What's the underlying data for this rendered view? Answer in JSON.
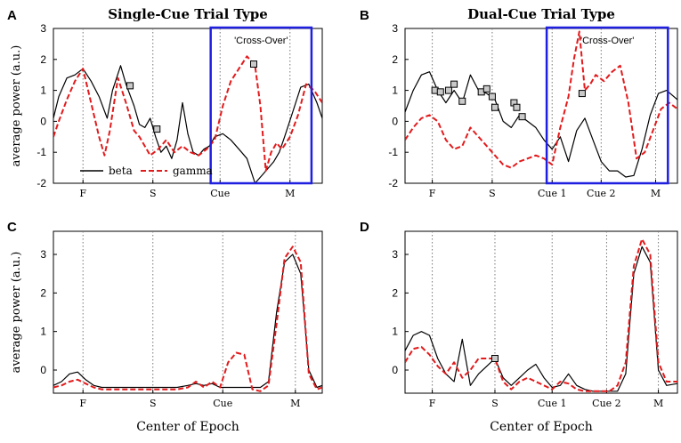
{
  "colors": {
    "beta": "#000000",
    "gamma": "#e31a1c",
    "crossover_box": "#1f1fe0",
    "marker_fill": "#c9c9c9"
  },
  "chart_data": [
    {
      "panel": "A",
      "type": "line",
      "title": "Single-Cue Trial Type",
      "ylabel": "average power (a.u.)",
      "xlabel": "",
      "xlim": [
        0,
        10
      ],
      "ylim": [
        -2,
        3
      ],
      "yticks": [
        -2,
        -1,
        0,
        1,
        2,
        3
      ],
      "event_markers": [
        {
          "label": "F",
          "x": 1.1
        },
        {
          "label": "S",
          "x": 3.7
        },
        {
          "label": "Cue",
          "x": 6.2
        },
        {
          "label": "M",
          "x": 8.8
        }
      ],
      "crossover": {
        "label": "'Cross-Over'",
        "x_start": 5.85,
        "x_end": 9.6
      },
      "legend": {
        "entries": [
          "beta",
          "gamma"
        ],
        "placement": "bottom-left"
      },
      "series": [
        {
          "name": "beta",
          "style": "solid",
          "x": [
            0,
            0.2,
            0.5,
            0.8,
            1.1,
            1.4,
            1.7,
            2.0,
            2.2,
            2.5,
            2.7,
            3.0,
            3.2,
            3.4,
            3.6,
            3.8,
            4.0,
            4.2,
            4.4,
            4.6,
            4.8,
            5.0,
            5.2,
            5.4,
            5.6,
            5.8,
            6.0,
            6.3,
            6.6,
            6.9,
            7.2,
            7.5,
            7.8,
            8.0,
            8.2,
            8.4,
            8.6,
            8.9,
            9.2,
            9.5,
            9.8,
            10.0
          ],
          "y": [
            0.1,
            0.8,
            1.4,
            1.5,
            1.7,
            1.3,
            0.8,
            0.1,
            1.0,
            1.8,
            1.2,
            0.5,
            -0.1,
            -0.2,
            0.1,
            -0.5,
            -1.0,
            -0.8,
            -1.2,
            -0.6,
            0.6,
            -0.4,
            -1.0,
            -1.1,
            -0.9,
            -0.8,
            -0.5,
            -0.4,
            -0.6,
            -0.9,
            -1.2,
            -2.0,
            -1.7,
            -1.5,
            -1.3,
            -1.0,
            -0.5,
            0.3,
            1.1,
            1.2,
            0.6,
            0.1
          ]
        },
        {
          "name": "gamma",
          "style": "dashed",
          "x": [
            0,
            0.2,
            0.5,
            0.8,
            1.1,
            1.4,
            1.7,
            1.9,
            2.1,
            2.4,
            2.7,
            3.0,
            3.2,
            3.4,
            3.6,
            3.9,
            4.2,
            4.5,
            4.8,
            5.1,
            5.4,
            5.7,
            6.0,
            6.3,
            6.6,
            6.9,
            7.2,
            7.5,
            7.7,
            7.9,
            8.1,
            8.3,
            8.5,
            8.8,
            9.1,
            9.4,
            9.7,
            10.0
          ],
          "y": [
            -0.5,
            0.0,
            0.7,
            1.3,
            1.7,
            0.6,
            -0.5,
            -1.1,
            -0.3,
            1.4,
            0.6,
            -0.3,
            -0.5,
            -0.8,
            -1.1,
            -0.9,
            -0.6,
            -1.0,
            -0.8,
            -1.0,
            -1.1,
            -0.9,
            -0.6,
            0.5,
            1.3,
            1.7,
            2.1,
            1.8,
            0.5,
            -1.6,
            -1.0,
            -0.7,
            -0.9,
            -0.5,
            0.2,
            1.2,
            1.0,
            0.6
          ]
        }
      ],
      "markers": [
        {
          "series": "beta",
          "x": 2.85,
          "y": 1.15
        },
        {
          "series": "beta",
          "x": 3.85,
          "y": -0.25
        },
        {
          "series": "gamma",
          "x": 7.45,
          "y": 1.85
        }
      ]
    },
    {
      "panel": "B",
      "type": "line",
      "title": "Dual-Cue Trial Type",
      "ylabel": "",
      "xlabel": "",
      "xlim": [
        0,
        10
      ],
      "ylim": [
        -2,
        3
      ],
      "yticks": [
        -2,
        -1,
        0,
        1,
        2,
        3
      ],
      "event_markers": [
        {
          "label": "F",
          "x": 1.0
        },
        {
          "label": "S",
          "x": 3.2
        },
        {
          "label": "Cue 1",
          "x": 5.4
        },
        {
          "label": "Cue 2",
          "x": 7.2
        },
        {
          "label": "M",
          "x": 9.2
        }
      ],
      "crossover": {
        "label": "'Cross-Over'",
        "x_start": 5.2,
        "x_end": 9.65
      },
      "series": [
        {
          "name": "beta",
          "style": "solid",
          "x": [
            0,
            0.3,
            0.6,
            0.9,
            1.2,
            1.5,
            1.8,
            2.1,
            2.4,
            2.7,
            3.0,
            3.3,
            3.6,
            3.9,
            4.2,
            4.5,
            4.8,
            5.1,
            5.4,
            5.7,
            6.0,
            6.3,
            6.6,
            6.9,
            7.2,
            7.5,
            7.8,
            8.1,
            8.4,
            8.7,
            9.0,
            9.3,
            9.6,
            10.0
          ],
          "y": [
            0.3,
            1.0,
            1.5,
            1.6,
            1.0,
            0.6,
            1.0,
            0.6,
            1.5,
            1.0,
            0.9,
            0.7,
            0.0,
            -0.2,
            0.2,
            0.0,
            -0.2,
            -0.6,
            -0.9,
            -0.5,
            -1.3,
            -0.3,
            0.1,
            -0.6,
            -1.3,
            -1.6,
            -1.6,
            -1.8,
            -1.75,
            -0.9,
            0.2,
            0.9,
            1.0,
            0.7
          ]
        },
        {
          "name": "gamma",
          "style": "dashed",
          "x": [
            0,
            0.3,
            0.6,
            0.9,
            1.2,
            1.5,
            1.8,
            2.1,
            2.4,
            2.7,
            3.0,
            3.3,
            3.6,
            3.9,
            4.2,
            4.5,
            4.8,
            5.1,
            5.4,
            5.7,
            6.0,
            6.2,
            6.4,
            6.6,
            6.8,
            7.0,
            7.3,
            7.6,
            7.9,
            8.2,
            8.5,
            8.8,
            9.1,
            9.4,
            9.7,
            10.0
          ],
          "y": [
            -0.6,
            -0.2,
            0.1,
            0.2,
            0.0,
            -0.6,
            -0.9,
            -0.8,
            -0.2,
            -0.5,
            -0.8,
            -1.1,
            -1.4,
            -1.5,
            -1.3,
            -1.2,
            -1.1,
            -1.2,
            -1.4,
            -0.2,
            0.8,
            2.0,
            2.9,
            1.0,
            1.2,
            1.5,
            1.3,
            1.6,
            1.8,
            0.6,
            -1.2,
            -1.0,
            -0.3,
            0.4,
            0.6,
            0.4
          ]
        }
      ],
      "markers": [
        {
          "series": "beta",
          "x": 1.1,
          "y": 1.0
        },
        {
          "series": "beta",
          "x": 1.3,
          "y": 0.95
        },
        {
          "series": "beta",
          "x": 1.6,
          "y": 1.0
        },
        {
          "series": "beta",
          "x": 1.8,
          "y": 1.2
        },
        {
          "series": "beta",
          "x": 2.1,
          "y": 0.65
        },
        {
          "series": "beta",
          "x": 2.8,
          "y": 0.95
        },
        {
          "series": "beta",
          "x": 3.0,
          "y": 1.05
        },
        {
          "series": "beta",
          "x": 3.2,
          "y": 0.8
        },
        {
          "series": "beta",
          "x": 3.3,
          "y": 0.45
        },
        {
          "series": "beta",
          "x": 4.0,
          "y": 0.6
        },
        {
          "series": "beta",
          "x": 4.1,
          "y": 0.45
        },
        {
          "series": "beta",
          "x": 4.3,
          "y": 0.15
        },
        {
          "series": "gamma",
          "x": 6.5,
          "y": 0.9
        }
      ]
    },
    {
      "panel": "C",
      "type": "line",
      "title": "",
      "ylabel": "average power (a.u.)",
      "xlabel": "Center of Epoch",
      "xlim": [
        0,
        10
      ],
      "ylim": [
        -0.6,
        3.6
      ],
      "yticks": [
        0,
        1,
        2,
        3
      ],
      "event_markers": [
        {
          "label": "F",
          "x": 1.1
        },
        {
          "label": "S",
          "x": 3.7
        },
        {
          "label": "Cue",
          "x": 6.3
        },
        {
          "label": "M",
          "x": 9.0
        }
      ],
      "series": [
        {
          "name": "beta",
          "style": "solid",
          "x": [
            0,
            0.3,
            0.6,
            0.9,
            1.2,
            1.5,
            1.8,
            2.2,
            2.6,
            3.0,
            3.4,
            3.8,
            4.2,
            4.6,
            5.0,
            5.3,
            5.6,
            5.9,
            6.2,
            6.5,
            6.8,
            7.1,
            7.4,
            7.7,
            8.0,
            8.3,
            8.6,
            8.9,
            9.2,
            9.5,
            9.8,
            10.0
          ],
          "y": [
            -0.4,
            -0.3,
            -0.1,
            -0.05,
            -0.25,
            -0.4,
            -0.45,
            -0.45,
            -0.45,
            -0.45,
            -0.45,
            -0.45,
            -0.45,
            -0.45,
            -0.4,
            -0.35,
            -0.4,
            -0.35,
            -0.45,
            -0.45,
            -0.45,
            -0.45,
            -0.45,
            -0.45,
            -0.3,
            1.5,
            2.8,
            3.0,
            2.5,
            0.0,
            -0.45,
            -0.4
          ]
        },
        {
          "name": "gamma",
          "style": "dashed",
          "x": [
            0,
            0.3,
            0.6,
            0.9,
            1.2,
            1.5,
            1.8,
            2.2,
            2.6,
            3.0,
            3.4,
            3.8,
            4.2,
            4.6,
            5.0,
            5.3,
            5.6,
            5.9,
            6.2,
            6.5,
            6.8,
            7.1,
            7.4,
            7.7,
            8.0,
            8.3,
            8.6,
            8.9,
            9.2,
            9.5,
            9.8,
            10.0
          ],
          "y": [
            -0.45,
            -0.4,
            -0.3,
            -0.25,
            -0.35,
            -0.45,
            -0.5,
            -0.5,
            -0.5,
            -0.5,
            -0.5,
            -0.5,
            -0.5,
            -0.5,
            -0.45,
            -0.3,
            -0.45,
            -0.3,
            -0.45,
            0.2,
            0.45,
            0.4,
            -0.5,
            -0.55,
            -0.4,
            1.2,
            2.9,
            3.2,
            2.8,
            -0.1,
            -0.5,
            -0.45
          ]
        }
      ],
      "markers": []
    },
    {
      "panel": "D",
      "type": "line",
      "title": "",
      "ylabel": "",
      "xlabel": "Center of Epoch",
      "xlim": [
        0,
        10
      ],
      "ylim": [
        -0.6,
        3.6
      ],
      "yticks": [
        0,
        1,
        2,
        3
      ],
      "event_markers": [
        {
          "label": "F",
          "x": 1.0
        },
        {
          "label": "S",
          "x": 3.3
        },
        {
          "label": "Cue 1",
          "x": 5.4
        },
        {
          "label": "Cue 2",
          "x": 7.4
        },
        {
          "label": "M",
          "x": 9.3
        }
      ],
      "series": [
        {
          "name": "beta",
          "style": "solid",
          "x": [
            0,
            0.3,
            0.6,
            0.9,
            1.2,
            1.5,
            1.8,
            2.1,
            2.4,
            2.7,
            3.0,
            3.3,
            3.6,
            3.9,
            4.2,
            4.5,
            4.8,
            5.1,
            5.4,
            5.7,
            6.0,
            6.3,
            6.6,
            6.9,
            7.2,
            7.5,
            7.8,
            8.1,
            8.4,
            8.7,
            9.0,
            9.3,
            9.6,
            10.0
          ],
          "y": [
            0.5,
            0.9,
            1.0,
            0.9,
            0.3,
            -0.1,
            -0.3,
            0.8,
            -0.4,
            -0.1,
            0.1,
            0.3,
            -0.2,
            -0.4,
            -0.2,
            0.0,
            0.15,
            -0.2,
            -0.45,
            -0.4,
            -0.1,
            -0.4,
            -0.5,
            -0.55,
            -0.55,
            -0.55,
            -0.55,
            -0.1,
            2.5,
            3.2,
            2.8,
            0.0,
            -0.4,
            -0.35
          ]
        },
        {
          "name": "gamma",
          "style": "dashed",
          "x": [
            0,
            0.3,
            0.6,
            0.9,
            1.2,
            1.5,
            1.8,
            2.1,
            2.4,
            2.7,
            3.0,
            3.3,
            3.6,
            3.9,
            4.2,
            4.5,
            4.8,
            5.1,
            5.4,
            5.7,
            6.0,
            6.3,
            6.6,
            6.9,
            7.2,
            7.5,
            7.8,
            8.1,
            8.4,
            8.7,
            9.0,
            9.3,
            9.6,
            10.0
          ],
          "y": [
            0.2,
            0.55,
            0.6,
            0.4,
            0.1,
            -0.1,
            0.2,
            -0.2,
            0.0,
            0.3,
            0.3,
            0.3,
            -0.3,
            -0.5,
            -0.3,
            -0.2,
            -0.3,
            -0.4,
            -0.5,
            -0.3,
            -0.35,
            -0.5,
            -0.55,
            -0.55,
            -0.55,
            -0.55,
            -0.4,
            0.2,
            2.7,
            3.4,
            3.0,
            0.2,
            -0.3,
            -0.3
          ]
        }
      ],
      "markers": [
        {
          "series": "gamma",
          "x": 3.3,
          "y": 0.3
        }
      ]
    }
  ],
  "shared_xlabel": "Center of Epoch"
}
